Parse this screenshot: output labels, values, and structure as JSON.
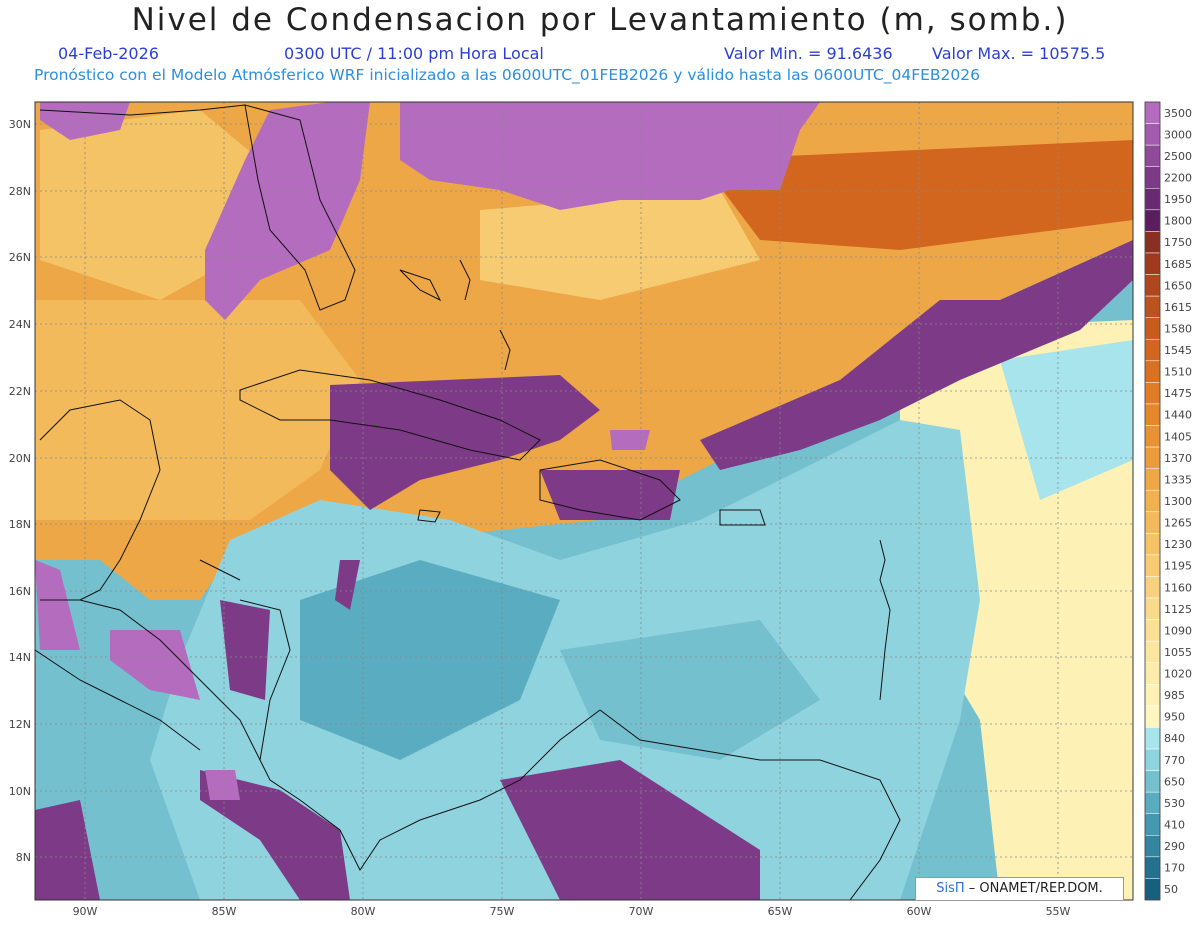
{
  "header": {
    "title": "Nivel de Condensacion por Levantamiento (m, somb.)",
    "date": "04-Feb-2026",
    "time": "0300 UTC / 11:00 pm Hora Local",
    "min": "Valor Min. = 91.6436",
    "max": "Valor Max. = 10575.5",
    "model": "Pronóstico con el Modelo Atmósferico WRF inicializado a las 0600UTC_01FEB2026 y válido hasta las  0600UTC_04FEB2026"
  },
  "axes": {
    "lon_labels": [
      "90W",
      "85W",
      "80W",
      "75W",
      "70W",
      "65W",
      "60W",
      "55W"
    ],
    "lat_labels": [
      "30N",
      "28N",
      "26N",
      "24N",
      "22N",
      "20N",
      "18N",
      "16N",
      "14N",
      "12N",
      "10N",
      "8N"
    ]
  },
  "legend": {
    "levels": [
      "3500",
      "3000",
      "2500",
      "2200",
      "1950",
      "1800",
      "1750",
      "1685",
      "1650",
      "1615",
      "1580",
      "1545",
      "1510",
      "1475",
      "1440",
      "1405",
      "1370",
      "1335",
      "1300",
      "1265",
      "1230",
      "1195",
      "1160",
      "1125",
      "1090",
      "1055",
      "1020",
      "985",
      "950",
      "840",
      "770",
      "650",
      "530",
      "410",
      "290",
      "170",
      "50"
    ],
    "colors": [
      "#b46cbe",
      "#a35cad",
      "#8f4a9a",
      "#7d3a86",
      "#6a2a72",
      "#5a1d5e",
      "#8a2f24",
      "#a03a1e",
      "#b0461d",
      "#bc521e",
      "#c85c1f",
      "#d2661f",
      "#da7121",
      "#e07c25",
      "#e5872b",
      "#e99233",
      "#ec9c3c",
      "#eea746",
      "#f0b150",
      "#f2ba5a",
      "#f4c366",
      "#f6cb72",
      "#f7d27e",
      "#f9d98a",
      "#fae095",
      "#fbe6a0",
      "#fcecab",
      "#fdf1b6",
      "#fef5c0",
      "#a7e4ec",
      "#8fd3de",
      "#74c0cf",
      "#5aadc0",
      "#4499b0",
      "#3385a0",
      "#24718f",
      "#185f7e"
    ]
  },
  "credit": {
    "brand": "SisΠ",
    "org": "– ONAMET/REP.DOM."
  }
}
